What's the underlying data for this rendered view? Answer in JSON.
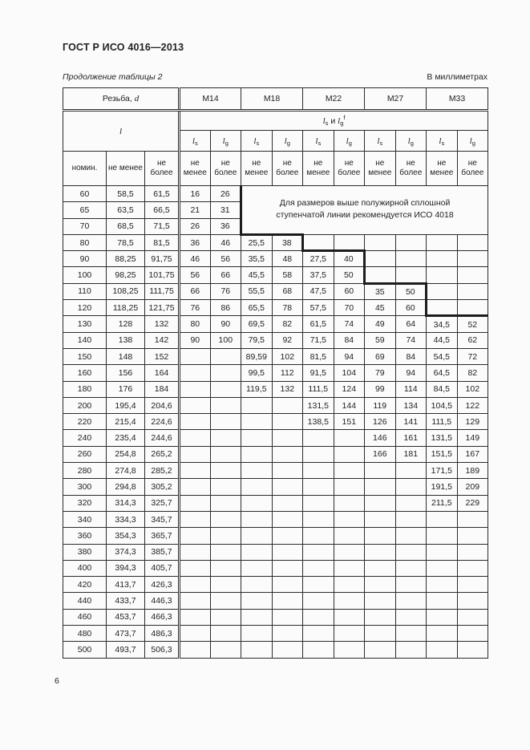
{
  "page": {
    "doc_title": "ГОСТ Р ИСО 4016—2013",
    "table_caption": "Продолжение таблицы 2",
    "units_label": "В миллиметрах",
    "page_number": "6"
  },
  "table": {
    "thread_label": "Резьба,",
    "thread_var": "d",
    "length_var": "l",
    "lslg": {
      "l1": "l",
      "sub1": "s",
      "and": "и",
      "l2": "l",
      "sub2": "g",
      "sup": "f"
    },
    "sizes": [
      "M14",
      "M18",
      "M22",
      "M27",
      "M33"
    ],
    "nominal_label": "номин.",
    "min_label": "не менее",
    "max_label": "не более",
    "note": "Для размеров выше полужирной сплошной ступенчатой линии рекомендуется ИСО 4018",
    "rows": [
      [
        "60",
        "58,5",
        "61,5",
        "16",
        "26"
      ],
      [
        "65",
        "63,5",
        "66,5",
        "21",
        "31"
      ],
      [
        "70",
        "68,5",
        "71,5",
        "26",
        "36"
      ],
      [
        "80",
        "78,5",
        "81,5",
        "36",
        "46",
        "25,5",
        "38",
        "",
        "",
        "",
        "",
        "",
        ""
      ],
      [
        "90",
        "88,25",
        "91,75",
        "46",
        "56",
        "35,5",
        "48",
        "27,5",
        "40",
        "",
        "",
        "",
        ""
      ],
      [
        "100",
        "98,25",
        "101,75",
        "56",
        "66",
        "45,5",
        "58",
        "37,5",
        "50",
        "",
        "",
        "",
        ""
      ],
      [
        "110",
        "108,25",
        "111,75",
        "66",
        "76",
        "55,5",
        "68",
        "47,5",
        "60",
        "35",
        "50",
        "",
        ""
      ],
      [
        "120",
        "118,25",
        "121,75",
        "76",
        "86",
        "65,5",
        "78",
        "57,5",
        "70",
        "45",
        "60",
        "",
        ""
      ],
      [
        "130",
        "128",
        "132",
        "80",
        "90",
        "69,5",
        "82",
        "61,5",
        "74",
        "49",
        "64",
        "34,5",
        "52"
      ],
      [
        "140",
        "138",
        "142",
        "90",
        "100",
        "79,5",
        "92",
        "71,5",
        "84",
        "59",
        "74",
        "44,5",
        "62"
      ],
      [
        "150",
        "148",
        "152",
        "",
        "",
        "89,59",
        "102",
        "81,5",
        "94",
        "69",
        "84",
        "54,5",
        "72"
      ],
      [
        "160",
        "156",
        "164",
        "",
        "",
        "99,5",
        "112",
        "91,5",
        "104",
        "79",
        "94",
        "64,5",
        "82"
      ],
      [
        "180",
        "176",
        "184",
        "",
        "",
        "119,5",
        "132",
        "111,5",
        "124",
        "99",
        "114",
        "84,5",
        "102"
      ],
      [
        "200",
        "195,4",
        "204,6",
        "",
        "",
        "",
        "",
        "131,5",
        "144",
        "119",
        "134",
        "104,5",
        "122"
      ],
      [
        "220",
        "215,4",
        "224,6",
        "",
        "",
        "",
        "",
        "138,5",
        "151",
        "126",
        "141",
        "111,5",
        "129"
      ],
      [
        "240",
        "235,4",
        "244,6",
        "",
        "",
        "",
        "",
        "",
        "",
        "146",
        "161",
        "131,5",
        "149"
      ],
      [
        "260",
        "254,8",
        "265,2",
        "",
        "",
        "",
        "",
        "",
        "",
        "166",
        "181",
        "151,5",
        "167"
      ],
      [
        "280",
        "274,8",
        "285,2",
        "",
        "",
        "",
        "",
        "",
        "",
        "",
        "",
        "171,5",
        "189"
      ],
      [
        "300",
        "294,8",
        "305,2",
        "",
        "",
        "",
        "",
        "",
        "",
        "",
        "",
        "191,5",
        "209"
      ],
      [
        "320",
        "314,3",
        "325,7",
        "",
        "",
        "",
        "",
        "",
        "",
        "",
        "",
        "211,5",
        "229"
      ],
      [
        "340",
        "334,3",
        "345,7",
        "",
        "",
        "",
        "",
        "",
        "",
        "",
        "",
        "",
        ""
      ],
      [
        "360",
        "354,3",
        "365,7",
        "",
        "",
        "",
        "",
        "",
        "",
        "",
        "",
        "",
        ""
      ],
      [
        "380",
        "374,3",
        "385,7",
        "",
        "",
        "",
        "",
        "",
        "",
        "",
        "",
        "",
        ""
      ],
      [
        "400",
        "394,3",
        "405,7",
        "",
        "",
        "",
        "",
        "",
        "",
        "",
        "",
        "",
        ""
      ],
      [
        "420",
        "413,7",
        "426,3",
        "",
        "",
        "",
        "",
        "",
        "",
        "",
        "",
        "",
        ""
      ],
      [
        "440",
        "433,7",
        "446,3",
        "",
        "",
        "",
        "",
        "",
        "",
        "",
        "",
        "",
        ""
      ],
      [
        "460",
        "453,7",
        "466,3",
        "",
        "",
        "",
        "",
        "",
        "",
        "",
        "",
        "",
        ""
      ],
      [
        "480",
        "473,7",
        "486,3",
        "",
        "",
        "",
        "",
        "",
        "",
        "",
        "",
        "",
        ""
      ],
      [
        "500",
        "493,7",
        "506,3",
        "",
        "",
        "",
        "",
        "",
        "",
        "",
        "",
        "",
        ""
      ]
    ]
  }
}
